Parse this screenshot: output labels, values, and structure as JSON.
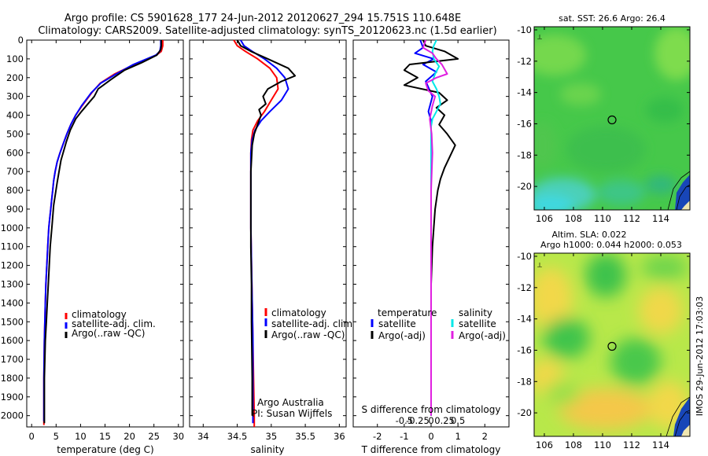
{
  "title": {
    "line1": "Argo profile: CS 5901628_177 24-Jun-2012 20120627_294 15.751S 110.648E",
    "line2": "Climatology: CARS2009. Satellite-adjusted climatology: synTS_20120623.nc (1.5d earlier)"
  },
  "colors": {
    "climatology": "#ff0000",
    "satellite": "#0000ff",
    "argo": "#000000",
    "sat_salinity": "#00e8e8",
    "argo_salinity_diff": "#e020e0",
    "map_green": "#46c84a",
    "map_yellow": "#f0f046",
    "map_cyan": "#40d8e0"
  },
  "footer": {
    "watermark": "IMOS 29-Jun-2012 17:03:03",
    "credit1": "Argo Australia",
    "credit2": "PI: Susan Wijffels"
  },
  "chart_data": [
    {
      "type": "line",
      "id": "temperature",
      "xlabel": "temperature (deg C)",
      "ylabel": "",
      "xlim": [
        -1,
        31
      ],
      "ylim": [
        2060,
        0
      ],
      "xticks": [
        0,
        5,
        10,
        15,
        20,
        25,
        30
      ],
      "yticks": [
        0,
        100,
        200,
        300,
        400,
        500,
        600,
        700,
        800,
        900,
        1000,
        1100,
        1200,
        1300,
        1400,
        1500,
        1600,
        1700,
        1800,
        1900,
        2000
      ],
      "legend": [
        "climatology",
        "satellite-adj. clim.",
        "Argo(..raw -QC)"
      ],
      "legend_position": "lower-center",
      "series": [
        {
          "name": "climatology",
          "color": "#ff0000",
          "x": [
            26.8,
            26.8,
            26.5,
            25.5,
            21.0,
            17.0,
            14.0,
            12.3,
            10.3,
            9.0,
            8.0,
            7.2,
            6.5,
            5.8,
            5.2,
            4.8,
            4.5,
            4.3,
            4.1,
            3.9,
            3.7,
            3.5,
            3.3,
            3.1,
            2.9,
            2.8,
            2.7,
            2.6,
            2.5,
            2.5
          ],
          "y": [
            0,
            30,
            60,
            80,
            130,
            180,
            230,
            280,
            350,
            400,
            450,
            500,
            550,
            600,
            650,
            700,
            750,
            800,
            850,
            900,
            950,
            1000,
            1100,
            1200,
            1300,
            1400,
            1500,
            1600,
            1800,
            2050
          ]
        },
        {
          "name": "satellite-adj. clim.",
          "color": "#0000ff",
          "x": [
            26.4,
            26.4,
            26.2,
            25.4,
            20.8,
            17.3,
            14.1,
            12.2,
            10.2,
            9.0,
            8.0,
            7.2,
            6.5,
            5.8,
            5.2,
            4.8,
            4.5,
            4.3,
            4.1,
            3.9,
            3.7,
            3.5,
            3.3,
            3.1,
            2.9,
            2.8,
            2.7,
            2.6,
            2.5,
            2.5
          ],
          "y": [
            0,
            30,
            60,
            80,
            130,
            180,
            230,
            280,
            350,
            400,
            450,
            500,
            550,
            600,
            650,
            700,
            750,
            800,
            850,
            900,
            950,
            1000,
            1100,
            1200,
            1300,
            1400,
            1500,
            1600,
            1800,
            2030
          ]
        },
        {
          "name": "Argo(..raw -QC)",
          "color": "#000000",
          "x": [
            26.5,
            26.5,
            26.4,
            25.6,
            22.5,
            19.0,
            16.2,
            13.6,
            12.8,
            11.5,
            10.2,
            9.0,
            7.9,
            7.1,
            6.0,
            5.2,
            4.5,
            4.2,
            3.8,
            3.6,
            3.4,
            3.2,
            3.0,
            2.8,
            2.6,
            2.6
          ],
          "y": [
            0,
            30,
            50,
            80,
            120,
            160,
            210,
            260,
            300,
            340,
            380,
            420,
            480,
            540,
            640,
            760,
            880,
            980,
            1100,
            1200,
            1300,
            1400,
            1500,
            1600,
            1800,
            2040
          ]
        }
      ]
    },
    {
      "type": "line",
      "id": "salinity",
      "xlabel": "salinity",
      "ylabel": "",
      "xlim": [
        33.8,
        36.1
      ],
      "ylim": [
        2060,
        0
      ],
      "xticks": [
        34,
        34.5,
        35,
        35.5,
        36
      ],
      "legend": [
        "climatology",
        "satellite-adj. clim.",
        "Argo(..raw -QC)"
      ],
      "legend_position": "lower-center",
      "series": [
        {
          "name": "climatology",
          "color": "#ff0000",
          "x": [
            34.45,
            34.5,
            34.62,
            34.8,
            34.98,
            35.08,
            35.1,
            35.0,
            34.9,
            34.8,
            34.73,
            34.71,
            34.7,
            34.7,
            34.7,
            34.71,
            34.72,
            34.73,
            34.74,
            34.75,
            34.75
          ],
          "y": [
            0,
            30,
            60,
            100,
            150,
            200,
            260,
            320,
            380,
            430,
            480,
            530,
            600,
            800,
            1000,
            1200,
            1400,
            1600,
            1800,
            2000,
            2060
          ]
        },
        {
          "name": "satellite-adj. clim.",
          "color": "#0000ff",
          "x": [
            34.55,
            34.6,
            34.72,
            34.9,
            35.08,
            35.2,
            35.25,
            35.15,
            34.98,
            34.85,
            34.76,
            34.72,
            34.7,
            34.7,
            34.7,
            34.71,
            34.72,
            34.73,
            34.73,
            34.73,
            34.73
          ],
          "y": [
            0,
            30,
            60,
            100,
            150,
            200,
            260,
            320,
            380,
            430,
            480,
            530,
            600,
            800,
            1000,
            1200,
            1400,
            1600,
            1800,
            2000,
            2040
          ]
        },
        {
          "name": "Argo(..raw -QC)",
          "color": "#000000",
          "x": [
            34.5,
            34.55,
            34.7,
            34.95,
            35.25,
            35.35,
            35.15,
            34.95,
            34.88,
            34.92,
            34.82,
            34.85,
            34.8,
            34.75,
            34.72,
            34.7,
            34.7,
            34.7,
            34.71,
            34.71,
            34.72,
            34.72
          ],
          "y": [
            0,
            30,
            60,
            100,
            150,
            190,
            220,
            260,
            300,
            340,
            370,
            400,
            450,
            500,
            560,
            700,
            900,
            1100,
            1300,
            1500,
            1800,
            2000
          ]
        }
      ]
    },
    {
      "type": "line",
      "id": "difference",
      "xlabel": "T difference from climatology",
      "x2label": "S difference from climatology",
      "ylabel": "",
      "xlim": [
        -2.9,
        2.9
      ],
      "ylim": [
        2060,
        0
      ],
      "xticks": [
        -2,
        -1,
        0,
        1,
        2
      ],
      "x2ticks": [
        "-0.5",
        "-0.25",
        "0",
        "0.25",
        "0.5"
      ],
      "legend": {
        "temperature_title": "temperature",
        "salinity_title": "salinity",
        "items": [
          "satellite",
          "Argo(-adj)",
          "satellite",
          "Argo(-adj)"
        ]
      },
      "legend_position": "lower-center",
      "series": [
        {
          "name": "temperature satellite",
          "color": "#0000ff",
          "x": [
            -0.4,
            -0.3,
            -0.6,
            0.1,
            -0.3,
            0.2,
            -0.2,
            0.05,
            -0.1,
            0.0,
            0.0,
            0.0,
            0.0,
            0.0,
            0.0,
            0.0,
            0.0,
            0.0,
            0.0
          ],
          "y": [
            0,
            40,
            70,
            100,
            130,
            170,
            220,
            300,
            380,
            430,
            500,
            600,
            800,
            1000,
            1200,
            1400,
            1600,
            1800,
            2000
          ]
        },
        {
          "name": "temperature Argo(-adj)",
          "color": "#000000",
          "x": [
            -0.3,
            -0.2,
            0.5,
            1.0,
            -0.8,
            -1.0,
            -0.5,
            -1.0,
            0.3,
            0.6,
            0.2,
            0.5,
            0.3,
            0.6,
            0.9,
            0.7,
            0.5,
            0.35,
            0.25,
            0.15,
            0.1,
            0.05,
            0.0,
            0.0,
            0.0,
            0.0
          ],
          "y": [
            0,
            30,
            60,
            100,
            130,
            160,
            200,
            240,
            280,
            320,
            360,
            400,
            450,
            500,
            560,
            620,
            680,
            740,
            800,
            900,
            1000,
            1100,
            1300,
            1500,
            1800,
            2000
          ]
        },
        {
          "name": "salinity satellite",
          "color": "#00e8e8",
          "x": [
            0.2,
            0.1,
            0.05,
            0.1,
            0.3,
            0.15,
            0.05,
            0.2,
            0.3,
            0.35,
            0.2,
            0.05,
            0.0,
            0.0,
            0.0,
            0.0,
            0.0,
            0.0,
            0.0,
            0.0
          ],
          "y": [
            0,
            30,
            60,
            100,
            140,
            180,
            220,
            260,
            300,
            340,
            380,
            420,
            460,
            600,
            800,
            1000,
            1200,
            1500,
            1800,
            2000
          ]
        },
        {
          "name": "salinity Argo(-adj)",
          "color": "#e020e0",
          "x": [
            -0.2,
            -0.3,
            0.05,
            0.2,
            0.4,
            0.6,
            0.2,
            -0.2,
            -0.1,
            0.15,
            0.05,
            -0.05,
            0.02,
            0.05,
            0.0,
            0.0,
            0.0,
            0.0,
            0.0,
            0.0
          ],
          "y": [
            0,
            40,
            70,
            100,
            130,
            180,
            200,
            230,
            270,
            300,
            350,
            420,
            500,
            600,
            800,
            1000,
            1200,
            1500,
            1800,
            2000
          ]
        }
      ]
    },
    {
      "type": "heatmap",
      "id": "sst_map",
      "title": "sat. SST: 26.6 Argo: 26.4",
      "xticks": [
        106,
        108,
        110,
        112,
        114
      ],
      "yticks": [
        -10,
        -12,
        -14,
        -16,
        -18,
        -20
      ],
      "xlim": [
        105.3,
        116.0
      ],
      "ylim": [
        -21.5,
        -9.8
      ],
      "marker": {
        "lon": 110.648,
        "lat": -15.751
      }
    },
    {
      "type": "heatmap",
      "id": "sla_map",
      "title": "Altim. SLA: 0.022",
      "subtitle": "Argo h1000: 0.044 h2000: 0.053",
      "xticks": [
        106,
        108,
        110,
        112,
        114
      ],
      "yticks": [
        -10,
        -12,
        -14,
        -16,
        -18,
        -20
      ],
      "xlim": [
        105.3,
        116.0
      ],
      "ylim": [
        -21.5,
        -9.8
      ],
      "marker": {
        "lon": 110.648,
        "lat": -15.751
      }
    }
  ]
}
